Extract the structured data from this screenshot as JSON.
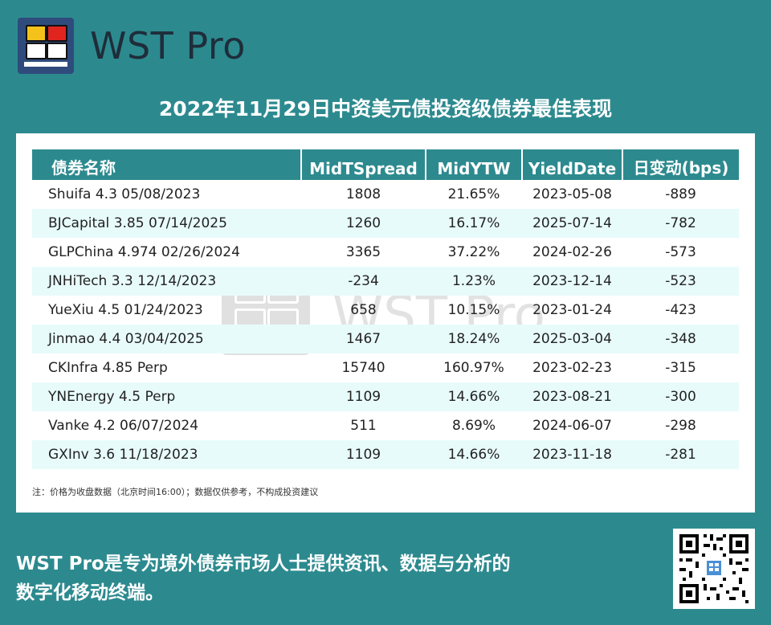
{
  "brand": {
    "name": "WST Pro"
  },
  "headline": "2022年11月29日中资美元债投资级债券最佳表现",
  "table": {
    "headers": [
      "债券名称",
      "MidTSpread",
      "MidYTW",
      "YieldDate",
      "日变动(bps)"
    ],
    "rows": [
      [
        "Shuifa 4.3 05/08/2023",
        "1808",
        "21.65%",
        "2023-05-08",
        "-889"
      ],
      [
        "BJCapital 3.85 07/14/2025",
        "1260",
        "16.17%",
        "2025-07-14",
        "-782"
      ],
      [
        "GLPChina 4.974 02/26/2024",
        "3365",
        "37.22%",
        "2024-02-26",
        "-573"
      ],
      [
        "JNHiTech 3.3 12/14/2023",
        "-234",
        "1.23%",
        "2023-12-14",
        "-523"
      ],
      [
        "YueXiu 4.5 01/24/2023",
        "658",
        "10.15%",
        "2023-01-24",
        "-423"
      ],
      [
        "Jinmao 4.4 03/04/2025",
        "1467",
        "18.24%",
        "2025-03-04",
        "-348"
      ],
      [
        "CKInfra 4.85 Perp",
        "15740",
        "160.97%",
        "2023-02-23",
        "-315"
      ],
      [
        "YNEnergy 4.5 Perp",
        "1109",
        "14.66%",
        "2023-08-21",
        "-300"
      ],
      [
        "Vanke 4.2 06/07/2024",
        "511",
        "8.69%",
        "2024-06-07",
        "-298"
      ],
      [
        "GXInv 3.6 11/18/2023",
        "1109",
        "14.66%",
        "2023-11-18",
        "-281"
      ]
    ]
  },
  "note": "注：价格为收盘数据（北京时间16:00）；数据仅供参考，不构成投资建议",
  "tagline": {
    "line1": "WST Pro是专为境外债券市场人士提供资讯、数据与分析的",
    "line2": "数字化移动终端。"
  },
  "colors": {
    "background": "#2c8a8f",
    "header_bg": "#2c8a8f",
    "row_alt": "#e8fbfb",
    "logo_bg": "#2f4b7c"
  },
  "icons": {
    "logo": "wst-terminal-icon",
    "qr": "qr-code-icon"
  }
}
